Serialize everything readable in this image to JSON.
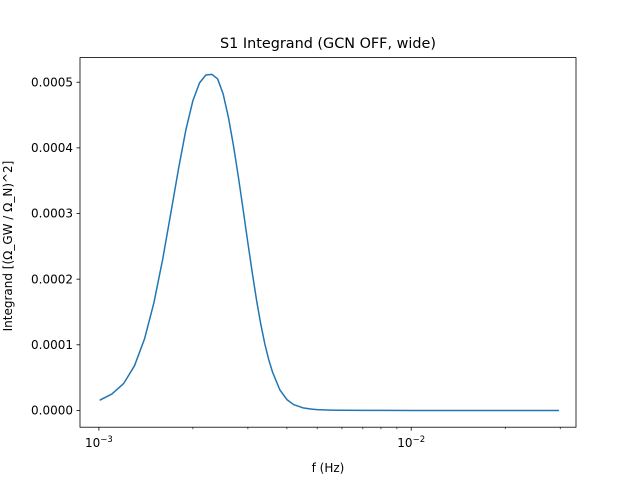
{
  "chart_data": {
    "type": "line",
    "title": "S1 Integrand (GCN OFF, wide)",
    "xlabel": "f (Hz)",
    "ylabel": "Integrand [(Ω_GW / Ω_N)^2]",
    "xscale": "log",
    "xlim": [
      0.00087,
      0.0337
    ],
    "ylim": [
      -2.55e-05,
      0.0005375
    ],
    "grid": false,
    "x_ticks": [
      {
        "value": 0.001,
        "base": "10",
        "exp": "−3"
      },
      {
        "value": 0.01,
        "base": "10",
        "exp": "−2"
      }
    ],
    "x_minor_ticks": [
      0.002,
      0.003,
      0.004,
      0.005,
      0.006,
      0.007,
      0.008,
      0.009,
      0.02,
      0.03
    ],
    "y_ticks": [
      {
        "value": 0.0,
        "label": "0.0000"
      },
      {
        "value": 0.0001,
        "label": "0.0001"
      },
      {
        "value": 0.0002,
        "label": "0.0002"
      },
      {
        "value": 0.0003,
        "label": "0.0003"
      },
      {
        "value": 0.0004,
        "label": "0.0004"
      },
      {
        "value": 0.0005,
        "label": "0.0005"
      }
    ],
    "series": [
      {
        "color": "#1f77b4",
        "x": [
          0.00101,
          0.0011,
          0.0012,
          0.0013,
          0.0014,
          0.0015,
          0.0016,
          0.0017,
          0.0018,
          0.0019,
          0.002,
          0.0021,
          0.0022,
          0.0023,
          0.0024,
          0.0025,
          0.0026,
          0.0027,
          0.0028,
          0.0029,
          0.003,
          0.0031,
          0.0032,
          0.0033,
          0.0034,
          0.0035,
          0.0036,
          0.0038,
          0.004,
          0.0042,
          0.0045,
          0.0048,
          0.005,
          0.0055,
          0.006,
          0.007,
          0.008,
          0.01,
          0.013,
          0.016,
          0.02,
          0.025,
          0.0296
        ],
        "y": [
          1.6e-05,
          2.5e-05,
          4.1e-05,
          6.8e-05,
          0.000109,
          0.000164,
          0.00023,
          0.000301,
          0.000369,
          0.000428,
          0.000472,
          0.000499,
          0.000511,
          0.000512,
          0.000505,
          0.000482,
          0.000446,
          0.000402,
          0.000354,
          0.000304,
          0.000255,
          0.000209,
          0.000167,
          0.000131,
          0.000101,
          7.7e-05,
          5.8e-05,
          3.1e-05,
          1.65e-05,
          9e-06,
          4e-06,
          2e-06,
          1.3e-06,
          6e-07,
          3e-07,
          1e-07,
          5e-08,
          0.0,
          0.0,
          0.0,
          0.0,
          0.0,
          0.0
        ]
      }
    ]
  }
}
